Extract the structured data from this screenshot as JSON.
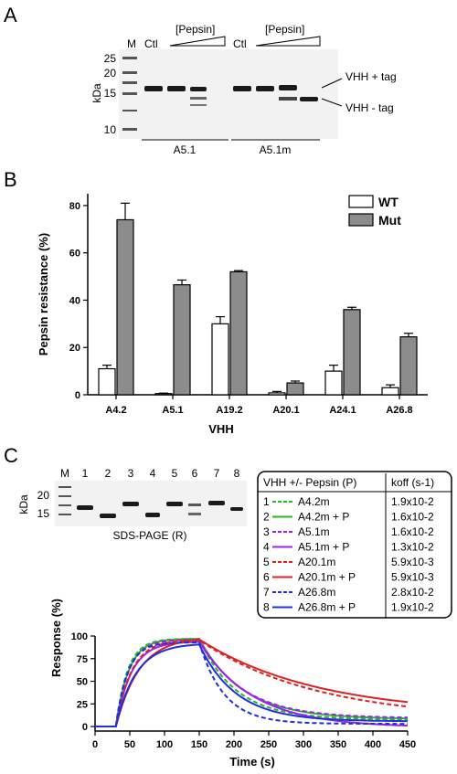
{
  "panel_a": {
    "letter": "A",
    "marker_lane": "M",
    "ctl1": "Ctl",
    "ctl2": "Ctl",
    "pepsin1": "[Pepsin]",
    "pepsin2": "[Pepsin]",
    "mw_labels": [
      "25",
      "20",
      "15",
      "10"
    ],
    "kda": "kDa",
    "band_label_plus": "VHH + tag",
    "band_label_minus": "VHH - tag",
    "group1": "A5.1",
    "group2": "A5.1m"
  },
  "panel_b": {
    "letter": "B",
    "chart_data": {
      "type": "bar",
      "categories": [
        "A4.2",
        "A5.1",
        "A19.2",
        "A20.1",
        "A24.1",
        "A26.8"
      ],
      "series": [
        {
          "name": "WT",
          "values": [
            11,
            0.5,
            30,
            0.8,
            10,
            3
          ],
          "errors": [
            1.5,
            0.2,
            3,
            0.6,
            2.5,
            1.2
          ],
          "color": "#ffffff"
        },
        {
          "name": "Mut",
          "values": [
            74,
            46.5,
            52,
            5,
            36,
            24.5
          ],
          "errors": [
            7,
            2,
            0.5,
            0.8,
            1,
            1.5
          ],
          "color": "#8c8c8c"
        }
      ],
      "ylabel": "Pepsin resistance (%)",
      "xlabel": "VHH",
      "ylim": [
        0,
        85
      ],
      "yticks": [
        0,
        20,
        40,
        60,
        80
      ],
      "legend": "top-right"
    }
  },
  "panel_c": {
    "letter": "C",
    "marker_lane": "M",
    "lane_numbers": [
      "1",
      "2",
      "3",
      "4",
      "5",
      "6",
      "7",
      "8"
    ],
    "mw_labels": [
      "20",
      "15"
    ],
    "kda": "kDa",
    "gel_caption": "SDS-PAGE (R)",
    "table_header_left": "VHH +/- Pepsin (P)",
    "table_header_right": "koff (s-1)",
    "rows": [
      {
        "num": "1",
        "name": "A4.2m",
        "koff": "1.9x10-2",
        "color": "#22b822",
        "dash": true
      },
      {
        "num": "2",
        "name": "A4.2m + P",
        "koff": "1.6x10-2",
        "color": "#22b822",
        "dash": false
      },
      {
        "num": "3",
        "name": "A5.1m",
        "koff": "1.6x10-2",
        "color": "#a020f0",
        "dash": true
      },
      {
        "num": "4",
        "name": "A5.1m + P",
        "koff": "1.3x10-2",
        "color": "#a020f0",
        "dash": false
      },
      {
        "num": "5",
        "name": "A20.1m",
        "koff": "5.9x10-3",
        "color": "#e02020",
        "dash": true
      },
      {
        "num": "6",
        "name": "A20.1m + P",
        "koff": "5.9x10-3",
        "color": "#e02020",
        "dash": false
      },
      {
        "num": "7",
        "name": "A26.8m",
        "koff": "2.8x10-2",
        "color": "#1f2fe0",
        "dash": true
      },
      {
        "num": "8",
        "name": "A26.8m + P",
        "koff": "1.9x10-2",
        "color": "#1f2fe0",
        "dash": false
      }
    ],
    "chart_data": {
      "type": "line",
      "xlabel": "Time (s)",
      "ylabel": "Response (%)",
      "xlim": [
        0,
        450
      ],
      "ylim": [
        -5,
        100
      ],
      "xticks": [
        0,
        50,
        100,
        150,
        200,
        250,
        300,
        350,
        400,
        450
      ],
      "yticks": [
        0,
        25,
        50,
        75,
        100
      ],
      "association_start": 30,
      "dissociation_start": 150,
      "series": [
        {
          "name": "A4.2m",
          "color": "#22b822",
          "dash": true,
          "plateau": 97,
          "ka": 0.06,
          "koff": 0.019,
          "end": 8
        },
        {
          "name": "A4.2m + P",
          "color": "#22b822",
          "dash": false,
          "plateau": 97,
          "ka": 0.055,
          "koff": 0.016,
          "end": 9
        },
        {
          "name": "A5.1m",
          "color": "#a020f0",
          "dash": true,
          "plateau": 96,
          "ka": 0.055,
          "koff": 0.016,
          "end": 10
        },
        {
          "name": "A5.1m + P",
          "color": "#a020f0",
          "dash": false,
          "plateau": 94,
          "ka": 0.045,
          "koff": 0.013,
          "end": 1
        },
        {
          "name": "A20.1m",
          "color": "#e02020",
          "dash": true,
          "plateau": 96,
          "ka": 0.045,
          "koff": 0.0059,
          "end": 22
        },
        {
          "name": "A20.1m + P",
          "color": "#e02020",
          "dash": false,
          "plateau": 99,
          "ka": 0.03,
          "koff": 0.0059,
          "end": 27
        },
        {
          "name": "A26.8m",
          "color": "#1f2fe0",
          "dash": true,
          "plateau": 93,
          "ka": 0.06,
          "koff": 0.028,
          "end": 3
        },
        {
          "name": "A26.8m + P",
          "color": "#1f2fe0",
          "dash": false,
          "plateau": 92,
          "ka": 0.035,
          "koff": 0.019,
          "end": 6
        }
      ]
    }
  }
}
